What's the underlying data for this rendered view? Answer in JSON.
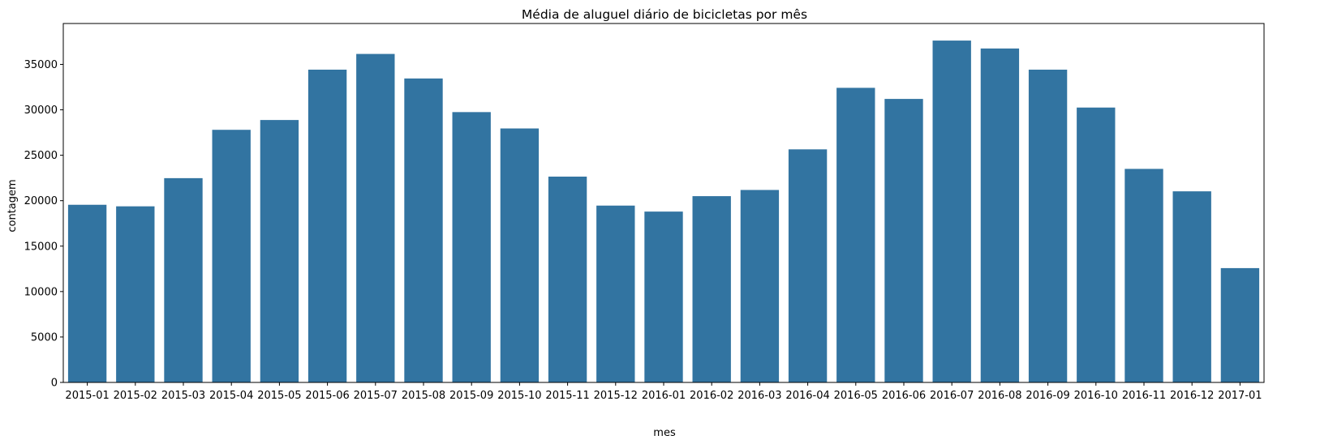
{
  "chart_data": {
    "type": "bar",
    "title": "Média de aluguel diário de bicicletas por mês",
    "xlabel": "mes",
    "ylabel": "contagem",
    "categories": [
      "2015-01",
      "2015-02",
      "2015-03",
      "2015-04",
      "2015-05",
      "2015-06",
      "2015-07",
      "2015-08",
      "2015-09",
      "2015-10",
      "2015-11",
      "2015-12",
      "2016-01",
      "2016-02",
      "2016-03",
      "2016-04",
      "2016-05",
      "2016-06",
      "2016-07",
      "2016-08",
      "2016-09",
      "2016-10",
      "2016-11",
      "2016-12",
      "2017-01"
    ],
    "values": [
      19550,
      19380,
      22480,
      27800,
      28880,
      34420,
      36150,
      33450,
      29750,
      27950,
      22650,
      19460,
      18800,
      20500,
      21180,
      25650,
      32420,
      31200,
      37620,
      36750,
      34420,
      30250,
      23500,
      21030,
      12580
    ],
    "yticks": [
      0,
      5000,
      10000,
      15000,
      20000,
      25000,
      30000,
      35000
    ],
    "ylim": [
      0,
      39500
    ],
    "grid": false,
    "legend": "none",
    "bar_color": "#3274a1"
  }
}
